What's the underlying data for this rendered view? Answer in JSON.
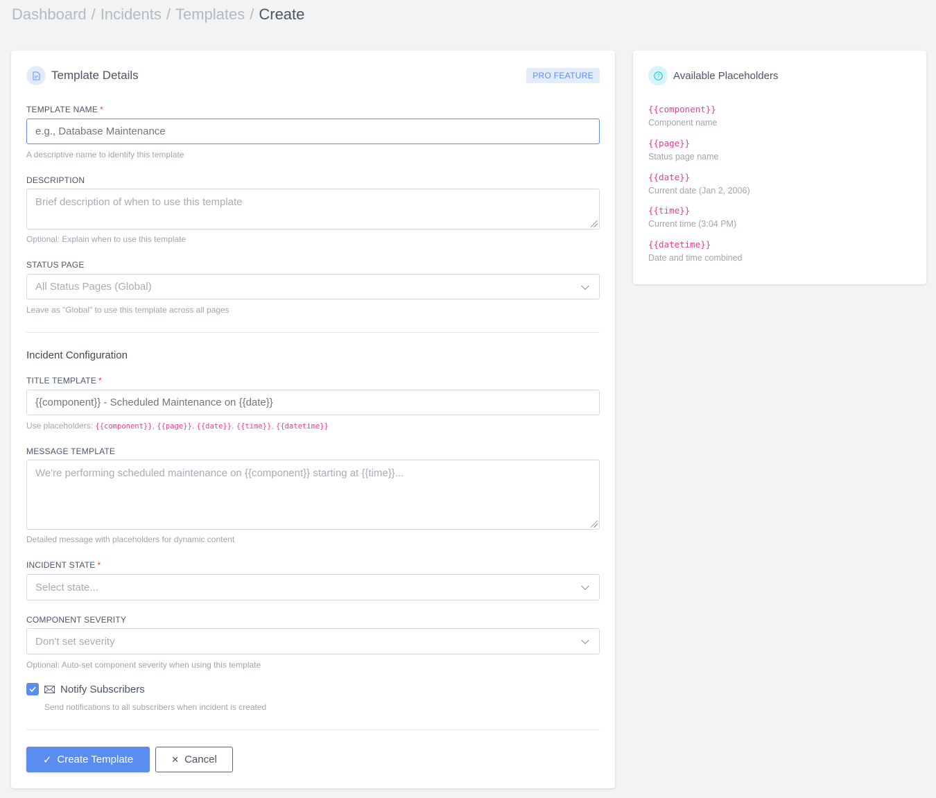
{
  "breadcrumb": [
    "Dashboard",
    "Incidents",
    "Templates",
    "Create"
  ],
  "form": {
    "title": "Template Details",
    "title_icon": "document-icon",
    "badge": "PRO FEATURE",
    "template_name": {
      "label": "TEMPLATE NAME",
      "value": "",
      "placeholder": "e.g., Database Maintenance",
      "help": "A descriptive name to identify this template",
      "required": "*"
    },
    "description": {
      "label": "DESCRIPTION",
      "value": "",
      "placeholder": "Brief description of when to use this template",
      "help": "Optional: Explain when to use this template"
    },
    "status_page": {
      "label": "STATUS PAGE",
      "selected": "All Status Pages (Global)",
      "help": "Leave as \"Global\" to use this template across all pages"
    },
    "section": "Incident Configuration",
    "title_template": {
      "label": "TITLE TEMPLATE",
      "required": "*",
      "value": "",
      "placeholder": "{{component}} - Scheduled Maintenance on {{date}}",
      "help_prefix": "Use placeholders: ",
      "help_codes": [
        "{{component}}",
        "{{page}}",
        "{{date}}",
        "{{time}}",
        "{{datetime}}"
      ]
    },
    "message_template": {
      "label": "MESSAGE TEMPLATE",
      "value": "",
      "placeholder": "We're performing scheduled maintenance on {{component}} starting at {{time}}...",
      "help": "Detailed message with placeholders for dynamic content"
    },
    "incident_state": {
      "label": "INCIDENT STATE",
      "required": "*",
      "selected": "Select state..."
    },
    "component_severity": {
      "label": "COMPONENT SEVERITY",
      "selected": "Don't set severity",
      "help": "Optional: Auto-set component severity when using this template"
    },
    "notify": {
      "label": "Notify Subscribers",
      "checked": true,
      "help": "Send notifications to all subscribers when incident is created"
    },
    "create_label": "Create Template",
    "cancel_label": "Cancel"
  },
  "placeholders": {
    "title": "Available Placeholders",
    "items": [
      {
        "code": "{{component}}",
        "desc": "Component name"
      },
      {
        "code": "{{page}}",
        "desc": "Status page name"
      },
      {
        "code": "{{date}}",
        "desc": "Current date (Jan 2, 2006)"
      },
      {
        "code": "{{time}}",
        "desc": "Current time (3:04 PM)"
      },
      {
        "code": "{{datetime}}",
        "desc": "Date and time combined"
      }
    ]
  },
  "colors": {
    "accent": "#5b8def",
    "code": "#e83e8c",
    "required": "#e53e3e"
  }
}
